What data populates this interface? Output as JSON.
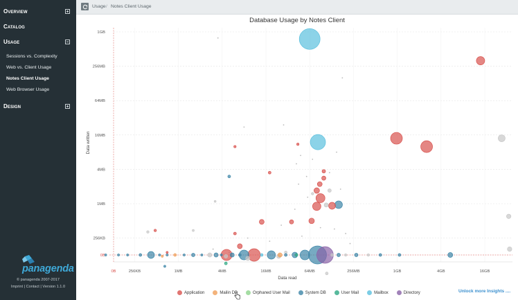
{
  "sidebar": {
    "overview": "Overview",
    "catalog": "Catalog",
    "usage": "Usage",
    "usage_items": [
      "Sessions vs. Complexity",
      "Web vs. Client Usage",
      "Notes Client Usage",
      "Web Browser Usage"
    ],
    "active_item": "Notes Client Usage",
    "design": "Design",
    "logo_text": "panagenda",
    "copyright": "© panagenda 2007-2017",
    "footer": "Imprint | Contact | Version 1.1.0"
  },
  "breadcrumb": {
    "first": "Usage",
    "sep": "/",
    "second": "Notes Client Usage"
  },
  "unlock_link": "Unlock more Insights ....",
  "colors": {
    "Application": "#d9534f",
    "Mailin DB": "#f0a05a",
    "Orphaned User Mail": "#8fd48c",
    "System DB": "#3d86a8",
    "User Mail": "#2ea883",
    "Mailbox": "#5bc0de",
    "Directory": "#8a63a8",
    "other": "#c8c8c8"
  },
  "chart_data": {
    "type": "scatter",
    "title": "Database Usage by Notes Client",
    "xlabel": "Data read",
    "ylabel": "Data written",
    "x_scale": "log2",
    "y_scale": "log2",
    "x_ticks": [
      "0B",
      "256KB",
      "1MB",
      "4MB",
      "16MB",
      "64MB",
      "256MB",
      "1GB",
      "4GB",
      "16GB"
    ],
    "y_ticks": [
      "0B",
      "256KB",
      "1MB",
      "4MB",
      "16MB",
      "64MB",
      "256MB",
      "1GB"
    ],
    "legend": [
      "Application",
      "Mailin DB",
      "Orphaned User Mail",
      "System DB",
      "User Mail",
      "Mailbox",
      "Directory"
    ],
    "legend_position": "bottom",
    "points": [
      {
        "x": 64,
        "y": 768,
        "r": 15,
        "s": "Mailbox"
      },
      {
        "x": 14336,
        "y": 320,
        "r": 6,
        "s": "Application"
      },
      {
        "x": 83,
        "y": 12,
        "r": 11,
        "s": "Mailbox"
      },
      {
        "x": 1000,
        "y": 14,
        "r": 8.5,
        "s": "Application"
      },
      {
        "x": 2600,
        "y": 10,
        "r": 8.5,
        "s": "Application"
      },
      {
        "x": 28000,
        "y": 14,
        "r": 5,
        "s": "other"
      },
      {
        "x": 6,
        "y": 10,
        "r": 1.7,
        "s": "Application"
      },
      {
        "x": 44,
        "y": 11,
        "r": 1.7,
        "s": "Application"
      },
      {
        "x": 18,
        "y": 3.5,
        "r": 2,
        "s": "Application"
      },
      {
        "x": 5,
        "y": 3,
        "r": 2,
        "s": "System DB"
      },
      {
        "x": 3.2,
        "y": 1.1,
        "r": 1.4,
        "s": "other"
      },
      {
        "x": 100,
        "y": 3.7,
        "r": 2.5,
        "s": "Application"
      },
      {
        "x": 100,
        "y": 2.8,
        "r": 3,
        "s": "Application"
      },
      {
        "x": 88,
        "y": 2.2,
        "r": 3.5,
        "s": "Application"
      },
      {
        "x": 80,
        "y": 1.7,
        "r": 4,
        "s": "Application"
      },
      {
        "x": 120,
        "y": 1.7,
        "r": 2.5,
        "s": "other"
      },
      {
        "x": 70,
        "y": 1.5,
        "r": 1.8,
        "s": "other"
      },
      {
        "x": 90,
        "y": 1.25,
        "r": 6.5,
        "s": "Application"
      },
      {
        "x": 80,
        "y": 0.9,
        "r": 6,
        "s": "Application"
      },
      {
        "x": 130,
        "y": 0.92,
        "r": 5,
        "s": "Application"
      },
      {
        "x": 160,
        "y": 0.96,
        "r": 5.5,
        "s": "System DB"
      },
      {
        "x": 108,
        "y": 0.95,
        "r": 3,
        "s": "other"
      },
      {
        "x": 68,
        "y": 0.5,
        "r": 4,
        "s": "Application"
      },
      {
        "x": 14,
        "y": 0.48,
        "r": 3.5,
        "s": "Application"
      },
      {
        "x": 36,
        "y": 0.48,
        "r": 3,
        "s": "Application"
      },
      {
        "x": 6,
        "y": 0.3,
        "r": 2,
        "s": "Application"
      },
      {
        "x": 7,
        "y": 0.18,
        "r": 3.5,
        "s": "Application"
      },
      {
        "x": 35000,
        "y": 0.6,
        "r": 3.2,
        "s": "other"
      },
      {
        "x": 36000,
        "y": 0.16,
        "r": 3.2,
        "s": "other"
      },
      {
        "x": 0.38,
        "y": 0.32,
        "r": 1.8,
        "s": "other"
      },
      {
        "x": 0.48,
        "y": 0.34,
        "r": 1.8,
        "s": "Application"
      },
      {
        "x": 1.6,
        "y": 0.34,
        "r": 1.5,
        "s": "other"
      },
      {
        "x": 0.6,
        "y": 0.12,
        "r": 1.5,
        "s": "Mailin DB"
      },
      {
        "x": 0.65,
        "y": 0.08,
        "r": 1.5,
        "s": "System DB"
      },
      {
        "x": 0.7,
        "y": 0.14,
        "r": 1.5,
        "s": "Application"
      },
      {
        "x": 4.5,
        "y": 0.12,
        "r": 2.5,
        "s": "other"
      },
      {
        "x": 4.5,
        "y": 0.09,
        "r": 2,
        "s": "User Mail"
      },
      {
        "x": 9,
        "y": 0.11,
        "r": 3,
        "s": "other"
      },
      {
        "x": 24,
        "y": 0.12,
        "r": 3,
        "s": "other"
      },
      {
        "x": 30,
        "y": 0.14,
        "r": 2,
        "s": "other"
      },
      {
        "x": 110,
        "y": 0.06,
        "r": 2,
        "s": "other"
      },
      {
        "x": 0.3,
        "y": 0,
        "r": 2,
        "s": "System DB"
      },
      {
        "x": 0.42,
        "y": 0,
        "r": 5,
        "s": "System DB"
      },
      {
        "x": 0.9,
        "y": 0,
        "r": 2,
        "s": "Mailin DB"
      },
      {
        "x": 1.6,
        "y": 0,
        "r": 2.5,
        "s": "System DB"
      },
      {
        "x": 2.7,
        "y": 0,
        "r": 3,
        "s": "other"
      },
      {
        "x": 3.3,
        "y": 0,
        "r": 3,
        "s": "System DB"
      },
      {
        "x": 4.6,
        "y": 0,
        "r": 8,
        "s": "Application"
      },
      {
        "x": 5.5,
        "y": 0,
        "r": 3,
        "s": "System DB"
      },
      {
        "x": 8,
        "y": 0,
        "r": 7,
        "s": "System DB"
      },
      {
        "x": 11,
        "y": 0,
        "r": 9,
        "s": "Application"
      },
      {
        "x": 19,
        "y": 0,
        "r": 6,
        "s": "System DB"
      },
      {
        "x": 25,
        "y": 0,
        "r": 3,
        "s": "Mailin DB"
      },
      {
        "x": 40,
        "y": 0,
        "r": 4,
        "s": "System DB"
      },
      {
        "x": 55,
        "y": 0,
        "r": 7,
        "s": "System DB"
      },
      {
        "x": 82,
        "y": 0,
        "r": 13,
        "s": "System DB"
      },
      {
        "x": 104,
        "y": 0,
        "r": 12,
        "s": "Directory"
      },
      {
        "x": 160,
        "y": 0,
        "r": 2.5,
        "s": "System DB"
      },
      {
        "x": 280,
        "y": 0,
        "r": 2.5,
        "s": "System DB"
      },
      {
        "x": 600,
        "y": 0,
        "r": 2,
        "s": "System DB"
      },
      {
        "x": 1100,
        "y": 0,
        "r": 2,
        "s": "System DB"
      },
      {
        "x": 5500,
        "y": 0,
        "r": 3.5,
        "s": "System DB"
      },
      {
        "x": 0.1,
        "y": 0,
        "r": 1.5,
        "s": "System DB"
      },
      {
        "x": 0.15,
        "y": 0,
        "r": 1.5,
        "s": "System DB"
      },
      {
        "x": 0.2,
        "y": 0,
        "r": 1.5,
        "s": "System DB"
      },
      {
        "x": 0.55,
        "y": 0,
        "r": 1.5,
        "s": "System DB"
      },
      {
        "x": 0.7,
        "y": 0,
        "r": 1.5,
        "s": "System DB"
      },
      {
        "x": 1.2,
        "y": 0,
        "r": 1.5,
        "s": "System DB"
      },
      {
        "x": 2.1,
        "y": 0,
        "r": 1.5,
        "s": "System DB"
      },
      {
        "x": 3.9,
        "y": 0,
        "r": 1.5,
        "s": "System DB"
      },
      {
        "x": 7,
        "y": 0,
        "r": 2,
        "s": "System DB"
      },
      {
        "x": 14,
        "y": 0,
        "r": 2,
        "s": "Mailbox"
      },
      {
        "x": 30,
        "y": 0,
        "r": 2,
        "s": "System DB"
      },
      {
        "x": 42,
        "y": 0,
        "r": 2,
        "s": "User Mail"
      },
      {
        "x": 130,
        "y": 0,
        "r": 2,
        "s": "other"
      },
      {
        "x": 200,
        "y": 0,
        "r": 1.8,
        "s": "other"
      },
      {
        "x": 410,
        "y": 0,
        "r": 1.8,
        "s": "other"
      }
    ],
    "scatter_tiny": [
      {
        "x": 3.5,
        "y": 800
      },
      {
        "x": 180,
        "y": 160
      },
      {
        "x": 8,
        "y": 22
      },
      {
        "x": 28,
        "y": 24
      },
      {
        "x": 48,
        "y": 7
      },
      {
        "x": 42,
        "y": 5
      },
      {
        "x": 70,
        "y": 6
      },
      {
        "x": 58,
        "y": 3
      },
      {
        "x": 45,
        "y": 2.2
      },
      {
        "x": 60,
        "y": 1.3
      },
      {
        "x": 120,
        "y": 3.5
      },
      {
        "x": 150,
        "y": 8
      },
      {
        "x": 170,
        "y": 1.8
      },
      {
        "x": 90,
        "y": 0.38
      },
      {
        "x": 140,
        "y": 0.36
      },
      {
        "x": 200,
        "y": 0.3
      },
      {
        "x": 26,
        "y": 0.42
      },
      {
        "x": 40,
        "y": 0.8
      },
      {
        "x": 9,
        "y": 0.25
      },
      {
        "x": 18,
        "y": 0.22
      },
      {
        "x": 50,
        "y": 0.27
      },
      {
        "x": 230,
        "y": 0.2
      },
      {
        "x": 5,
        "y": 0.14
      },
      {
        "x": 3,
        "y": 0.16
      }
    ]
  }
}
